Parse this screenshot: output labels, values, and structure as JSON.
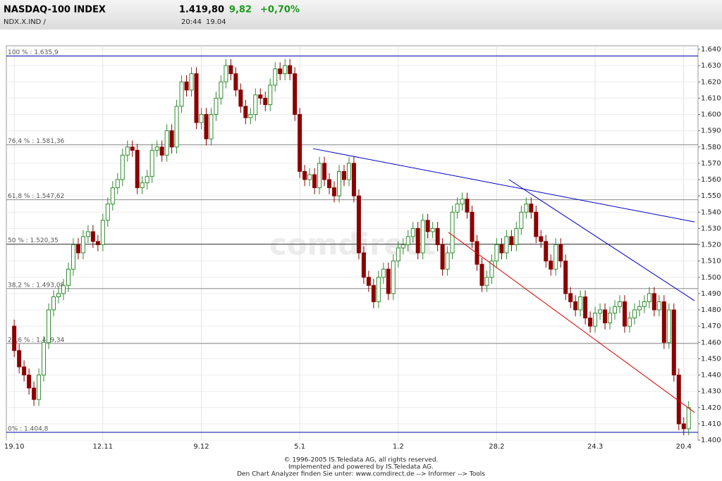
{
  "header": {
    "title": "NASDAQ-100 INDEX",
    "symbol": "NDX.X.IND  /",
    "price": "1.419,80",
    "change": "9,82",
    "change_pct": "+0,70%",
    "time": "20:44",
    "date": "19.04"
  },
  "chart_data": {
    "type": "candlestick",
    "watermark": "comdirect",
    "categories": [
      "19.10",
      null,
      null,
      null,
      null,
      null,
      null,
      null,
      null,
      null,
      null,
      null,
      null,
      null,
      null,
      null,
      null,
      null,
      "12.11",
      null,
      null,
      null,
      null,
      null,
      null,
      null,
      null,
      null,
      null,
      null,
      null,
      null,
      null,
      null,
      null,
      null,
      null,
      null,
      "9.12",
      null,
      null,
      null,
      null,
      null,
      null,
      null,
      null,
      null,
      null,
      null,
      null,
      null,
      null,
      null,
      null,
      null,
      null,
      null,
      "5.1",
      null,
      null,
      null,
      null,
      null,
      null,
      null,
      null,
      null,
      null,
      null,
      null,
      null,
      null,
      null,
      null,
      null,
      null,
      null,
      "1.2",
      null,
      null,
      null,
      null,
      null,
      null,
      null,
      null,
      null,
      null,
      null,
      null,
      null,
      null,
      null,
      null,
      null,
      null,
      null,
      "28.2",
      null,
      null,
      null,
      null,
      null,
      null,
      null,
      null,
      null,
      null,
      null,
      null,
      null,
      null,
      null,
      null,
      null,
      null,
      null,
      "24.3",
      null,
      null,
      null,
      null,
      null,
      null,
      null,
      null,
      null,
      null,
      null,
      null,
      null,
      null,
      null,
      null,
      null,
      "20.4",
      null
    ],
    "open": [
      1470,
      1455,
      1445,
      1440,
      1432,
      1425,
      1440,
      1460,
      1480,
      1488,
      1490,
      1495,
      1505,
      1520,
      1515,
      1525,
      1528,
      1522,
      1520,
      1535,
      1545,
      1555,
      1560,
      1575,
      1580,
      1578,
      1555,
      1558,
      1562,
      1578,
      1580,
      1575,
      1590,
      1580,
      1605,
      1620,
      1615,
      1625,
      1595,
      1600,
      1585,
      1600,
      1610,
      1620,
      1630,
      1625,
      1615,
      1605,
      1598,
      1600,
      1612,
      1610,
      1606,
      1618,
      1628,
      1625,
      1630,
      1625,
      1600,
      1565,
      1560,
      1563,
      1555,
      1570,
      1560,
      1555,
      1550,
      1565,
      1560,
      1570,
      1550,
      1515,
      1500,
      1495,
      1485,
      1500,
      1505,
      1490,
      1510,
      1518,
      1520,
      1525,
      1530,
      1515,
      1535,
      1528,
      1530,
      1520,
      1505,
      1515,
      1540,
      1545,
      1548,
      1540,
      1522,
      1508,
      1495,
      1500,
      1510,
      1520,
      1515,
      1525,
      1520,
      1530,
      1540,
      1545,
      1540,
      1525,
      1522,
      1510,
      1505,
      1520,
      1510,
      1490,
      1485,
      1480,
      1488,
      1475,
      1470,
      1478,
      1480,
      1472,
      1478,
      1482,
      1485,
      1470,
      1475,
      1480,
      1482,
      1485,
      1490,
      1480,
      1485,
      1460,
      1480,
      1440,
      1410,
      1407
    ],
    "high": [
      1474,
      1459,
      1449,
      1444,
      1436,
      1444,
      1464,
      1484,
      1492,
      1494,
      1499,
      1509,
      1524,
      1524,
      1529,
      1532,
      1532,
      1526,
      1539,
      1549,
      1559,
      1564,
      1579,
      1584,
      1584,
      1582,
      1562,
      1566,
      1582,
      1584,
      1584,
      1594,
      1594,
      1609,
      1624,
      1624,
      1629,
      1629,
      1604,
      1604,
      1604,
      1614,
      1624,
      1634,
      1634,
      1629,
      1619,
      1609,
      1604,
      1616,
      1616,
      1614,
      1622,
      1632,
      1632,
      1634,
      1634,
      1629,
      1604,
      1569,
      1567,
      1567,
      1574,
      1574,
      1564,
      1559,
      1569,
      1569,
      1574,
      1574,
      1554,
      1519,
      1504,
      1499,
      1504,
      1509,
      1509,
      1514,
      1522,
      1524,
      1529,
      1534,
      1534,
      1539,
      1539,
      1534,
      1534,
      1524,
      1519,
      1544,
      1549,
      1552,
      1552,
      1544,
      1526,
      1512,
      1504,
      1514,
      1524,
      1524,
      1529,
      1529,
      1534,
      1544,
      1549,
      1549,
      1544,
      1529,
      1526,
      1514,
      1524,
      1524,
      1514,
      1494,
      1489,
      1492,
      1492,
      1479,
      1482,
      1484,
      1484,
      1482,
      1486,
      1489,
      1489,
      1479,
      1484,
      1486,
      1489,
      1494,
      1494,
      1489,
      1489,
      1484,
      1484,
      1444,
      1414,
      1424
    ],
    "low": [
      1451,
      1441,
      1436,
      1428,
      1421,
      1421,
      1436,
      1456,
      1476,
      1484,
      1486,
      1491,
      1501,
      1511,
      1511,
      1521,
      1518,
      1516,
      1516,
      1531,
      1541,
      1551,
      1556,
      1571,
      1574,
      1551,
      1551,
      1554,
      1558,
      1574,
      1571,
      1571,
      1576,
      1576,
      1601,
      1611,
      1611,
      1591,
      1591,
      1581,
      1581,
      1596,
      1606,
      1616,
      1621,
      1611,
      1601,
      1594,
      1594,
      1596,
      1606,
      1602,
      1602,
      1614,
      1621,
      1621,
      1621,
      1596,
      1561,
      1556,
      1556,
      1551,
      1551,
      1556,
      1551,
      1546,
      1546,
      1556,
      1556,
      1546,
      1511,
      1496,
      1491,
      1481,
      1481,
      1496,
      1486,
      1486,
      1506,
      1514,
      1516,
      1521,
      1511,
      1511,
      1524,
      1524,
      1516,
      1501,
      1501,
      1511,
      1536,
      1541,
      1536,
      1518,
      1504,
      1491,
      1491,
      1496,
      1506,
      1511,
      1511,
      1516,
      1516,
      1526,
      1536,
      1536,
      1521,
      1518,
      1506,
      1501,
      1501,
      1506,
      1486,
      1481,
      1476,
      1476,
      1471,
      1466,
      1466,
      1474,
      1468,
      1468,
      1474,
      1478,
      1466,
      1466,
      1471,
      1476,
      1478,
      1481,
      1476,
      1476,
      1456,
      1456,
      1436,
      1406,
      1403,
      1403
    ],
    "close": [
      1455,
      1445,
      1440,
      1432,
      1425,
      1440,
      1460,
      1480,
      1488,
      1490,
      1495,
      1505,
      1520,
      1515,
      1525,
      1528,
      1522,
      1520,
      1535,
      1545,
      1555,
      1560,
      1575,
      1580,
      1578,
      1555,
      1558,
      1562,
      1578,
      1580,
      1575,
      1590,
      1580,
      1605,
      1620,
      1615,
      1625,
      1595,
      1600,
      1585,
      1600,
      1610,
      1620,
      1630,
      1625,
      1615,
      1605,
      1598,
      1600,
      1612,
      1610,
      1606,
      1618,
      1628,
      1625,
      1630,
      1625,
      1600,
      1565,
      1560,
      1563,
      1555,
      1570,
      1560,
      1555,
      1550,
      1565,
      1560,
      1570,
      1550,
      1515,
      1500,
      1495,
      1485,
      1500,
      1505,
      1490,
      1510,
      1518,
      1520,
      1525,
      1530,
      1515,
      1535,
      1528,
      1530,
      1520,
      1505,
      1515,
      1540,
      1545,
      1548,
      1540,
      1522,
      1508,
      1495,
      1500,
      1510,
      1520,
      1515,
      1525,
      1520,
      1530,
      1540,
      1545,
      1540,
      1525,
      1522,
      1510,
      1505,
      1520,
      1510,
      1490,
      1485,
      1480,
      1488,
      1475,
      1470,
      1478,
      1480,
      1472,
      1478,
      1482,
      1485,
      1470,
      1475,
      1480,
      1482,
      1485,
      1490,
      1480,
      1485,
      1460,
      1480,
      1440,
      1410,
      1407,
      1420
    ],
    "up_color": "#2e8b2e",
    "down_color": "#8b0000",
    "xlim": [
      -1.6,
      138.9
    ],
    "ylim": [
      1400,
      1640
    ],
    "yticks": [
      {
        "value": 1400,
        "label": "1.400"
      },
      {
        "value": 1410,
        "label": "1.410"
      },
      {
        "value": 1420,
        "label": "1.420"
      },
      {
        "value": 1430,
        "label": "1.430"
      },
      {
        "value": 1440,
        "label": "1.440"
      },
      {
        "value": 1450,
        "label": "1.450"
      },
      {
        "value": 1460,
        "label": "1.460"
      },
      {
        "value": 1470,
        "label": "1.470"
      },
      {
        "value": 1480,
        "label": "1.480"
      },
      {
        "value": 1490,
        "label": "1.490"
      },
      {
        "value": 1500,
        "label": "1.500"
      },
      {
        "value": 1510,
        "label": "1.510"
      },
      {
        "value": 1520,
        "label": "1.520"
      },
      {
        "value": 1530,
        "label": "1.530"
      },
      {
        "value": 1540,
        "label": "1.540"
      },
      {
        "value": 1550,
        "label": "1.550"
      },
      {
        "value": 1560,
        "label": "1.560"
      },
      {
        "value": 1570,
        "label": "1.570"
      },
      {
        "value": 1580,
        "label": "1.580"
      },
      {
        "value": 1590,
        "label": "1.590"
      },
      {
        "value": 1600,
        "label": "1.600"
      },
      {
        "value": 1610,
        "label": "1.610"
      },
      {
        "value": 1620,
        "label": "1.620"
      },
      {
        "value": 1630,
        "label": "1.630"
      },
      {
        "value": 1640,
        "label": "1.640"
      }
    ],
    "grid": true,
    "levels": [
      {
        "value": 1635.9,
        "label": "100 % : 1.635,9",
        "color": "#0000aa"
      },
      {
        "value": 1581.36,
        "label": "76,4 % : 1.581,36",
        "color": "#888888"
      },
      {
        "value": 1547.62,
        "label": "61,8 % : 1.547,62",
        "color": "#888888"
      },
      {
        "value": 1520.35,
        "label": "50 % : 1.520,35",
        "color": "#333333"
      },
      {
        "value": 1493.08,
        "label": "38,2 % : 1.493,08",
        "color": "#888888"
      },
      {
        "value": 1459.34,
        "label": "23,6 % : 1.459,34",
        "color": "#888888"
      },
      {
        "value": 1404.8,
        "label": "0% : 1.404,8",
        "color": "#0000aa"
      }
    ],
    "trendlines": [
      {
        "x": [
          60.7,
          138.2
        ],
        "y": [
          1579,
          1534
        ],
        "color": "#0000cc"
      },
      {
        "x": [
          100.5,
          138.2
        ],
        "y": [
          1560,
          1485.6
        ],
        "color": "#0000cc"
      },
      {
        "x": [
          88.2,
          138.2
        ],
        "y": [
          1527.6,
          1417
        ],
        "color": "#dd0000"
      }
    ]
  },
  "footer": [
    "© 1996-2005 IS.Teledata AG, all rights reserved.",
    "Implemented and powered by IS.Teledata AG.",
    "Den Chart Analyzer finden Sie unter: www.comdirect.de --> Informer --> Tools"
  ]
}
